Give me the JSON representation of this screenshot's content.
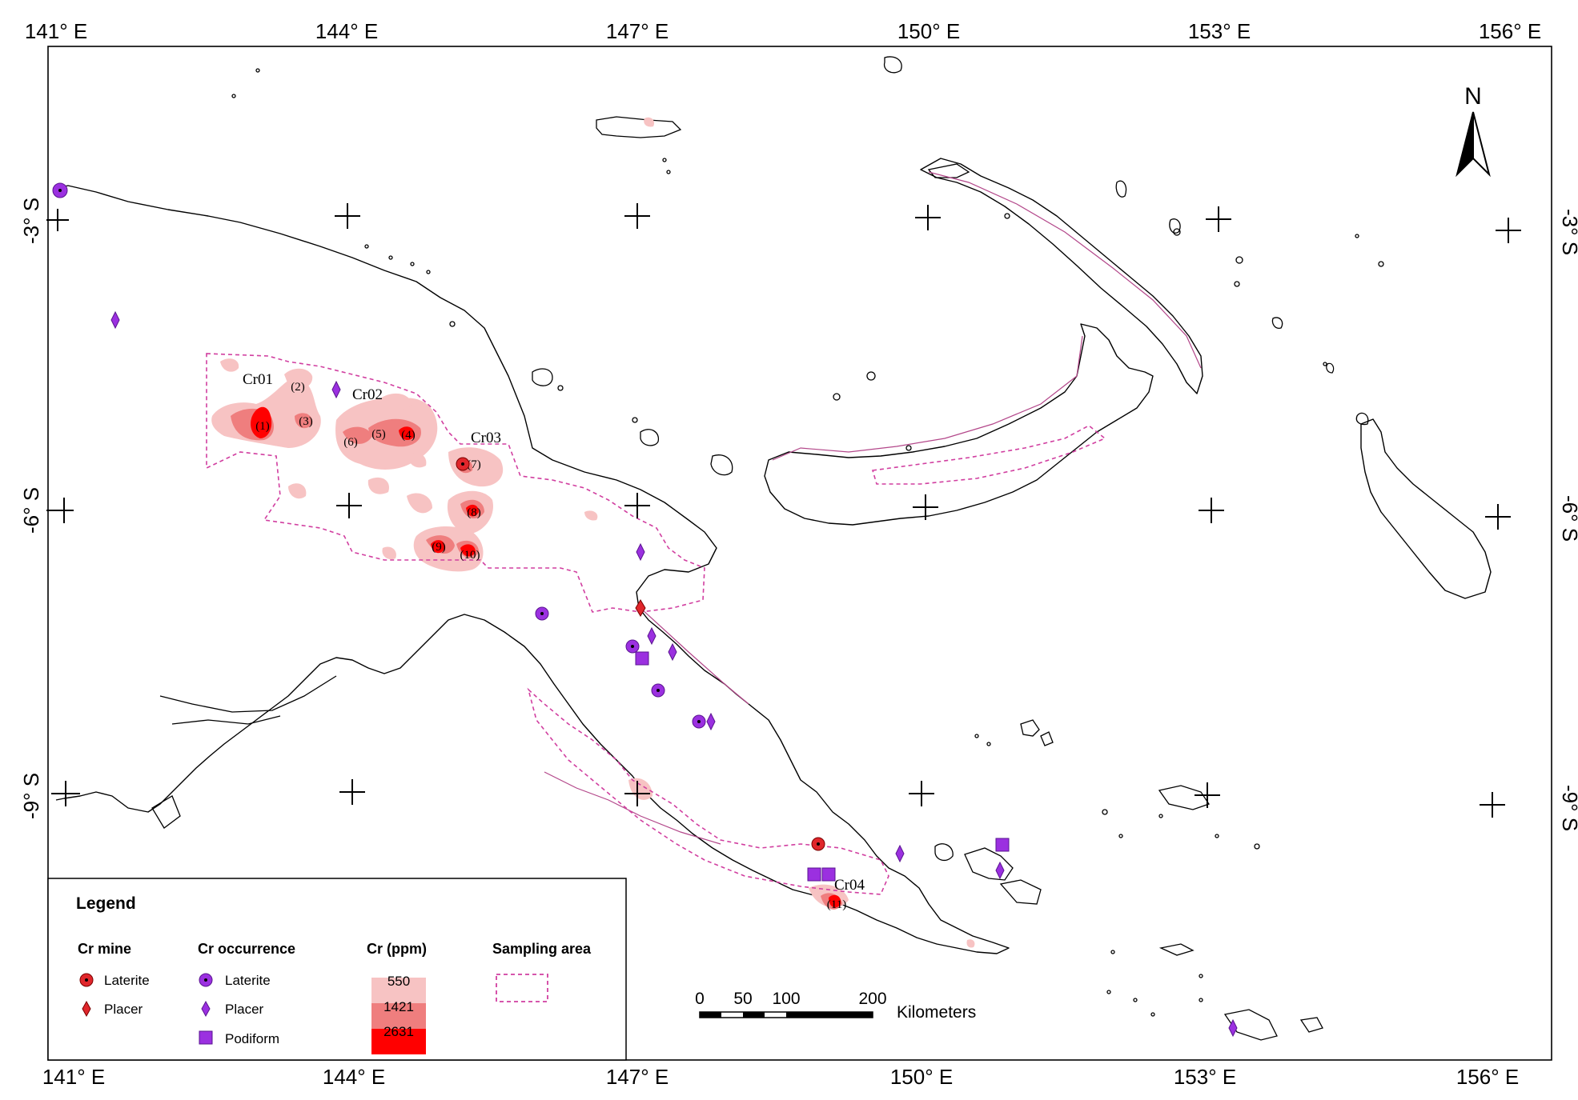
{
  "axes": {
    "longitude_ticks": [
      "141° E",
      "144° E",
      "147° E",
      "150° E",
      "153° E",
      "156° E"
    ],
    "latitude_ticks": [
      "-3° S",
      "-6° S",
      "-9° S"
    ]
  },
  "north_arrow": {
    "label": "N"
  },
  "region_labels": [
    "Cr01",
    "Cr02",
    "Cr03",
    "Cr04"
  ],
  "zone_numbers": [
    "(1)",
    "(2)",
    "(3)",
    "(4)",
    "(5)",
    "(6)",
    "(7)",
    "(8)",
    "(9)",
    "(10)",
    "(11)"
  ],
  "legend": {
    "title": "Legend",
    "cr_mine": {
      "heading": "Cr mine",
      "items": [
        {
          "label": "Laterite",
          "icon": "red-circle-dot-icon"
        },
        {
          "label": "Placer",
          "icon": "red-diamond-icon"
        }
      ]
    },
    "cr_occurrence": {
      "heading": "Cr occurrence",
      "items": [
        {
          "label": "Laterite",
          "icon": "purple-circle-dot-icon"
        },
        {
          "label": "Placer",
          "icon": "purple-diamond-icon"
        },
        {
          "label": "Podiform",
          "icon": "purple-square-icon"
        }
      ]
    },
    "cr_ppm": {
      "heading": "Cr (ppm)",
      "classes": [
        "550",
        "1421",
        "2631"
      ]
    },
    "sampling_area": {
      "heading": "Sampling area"
    }
  },
  "scale_bar": {
    "ticks": [
      "0",
      "50",
      "100",
      "200"
    ],
    "unit": "Kilometers"
  },
  "colors": {
    "cr_low": "#f7c3c3",
    "cr_mid": "#ef7e7e",
    "cr_high": "#ff0000",
    "mine_red": "#e0262b",
    "occurrence_purple": "#9b30e0",
    "sampling_pink": "#d13fa0",
    "province_line": "#b3478a"
  }
}
